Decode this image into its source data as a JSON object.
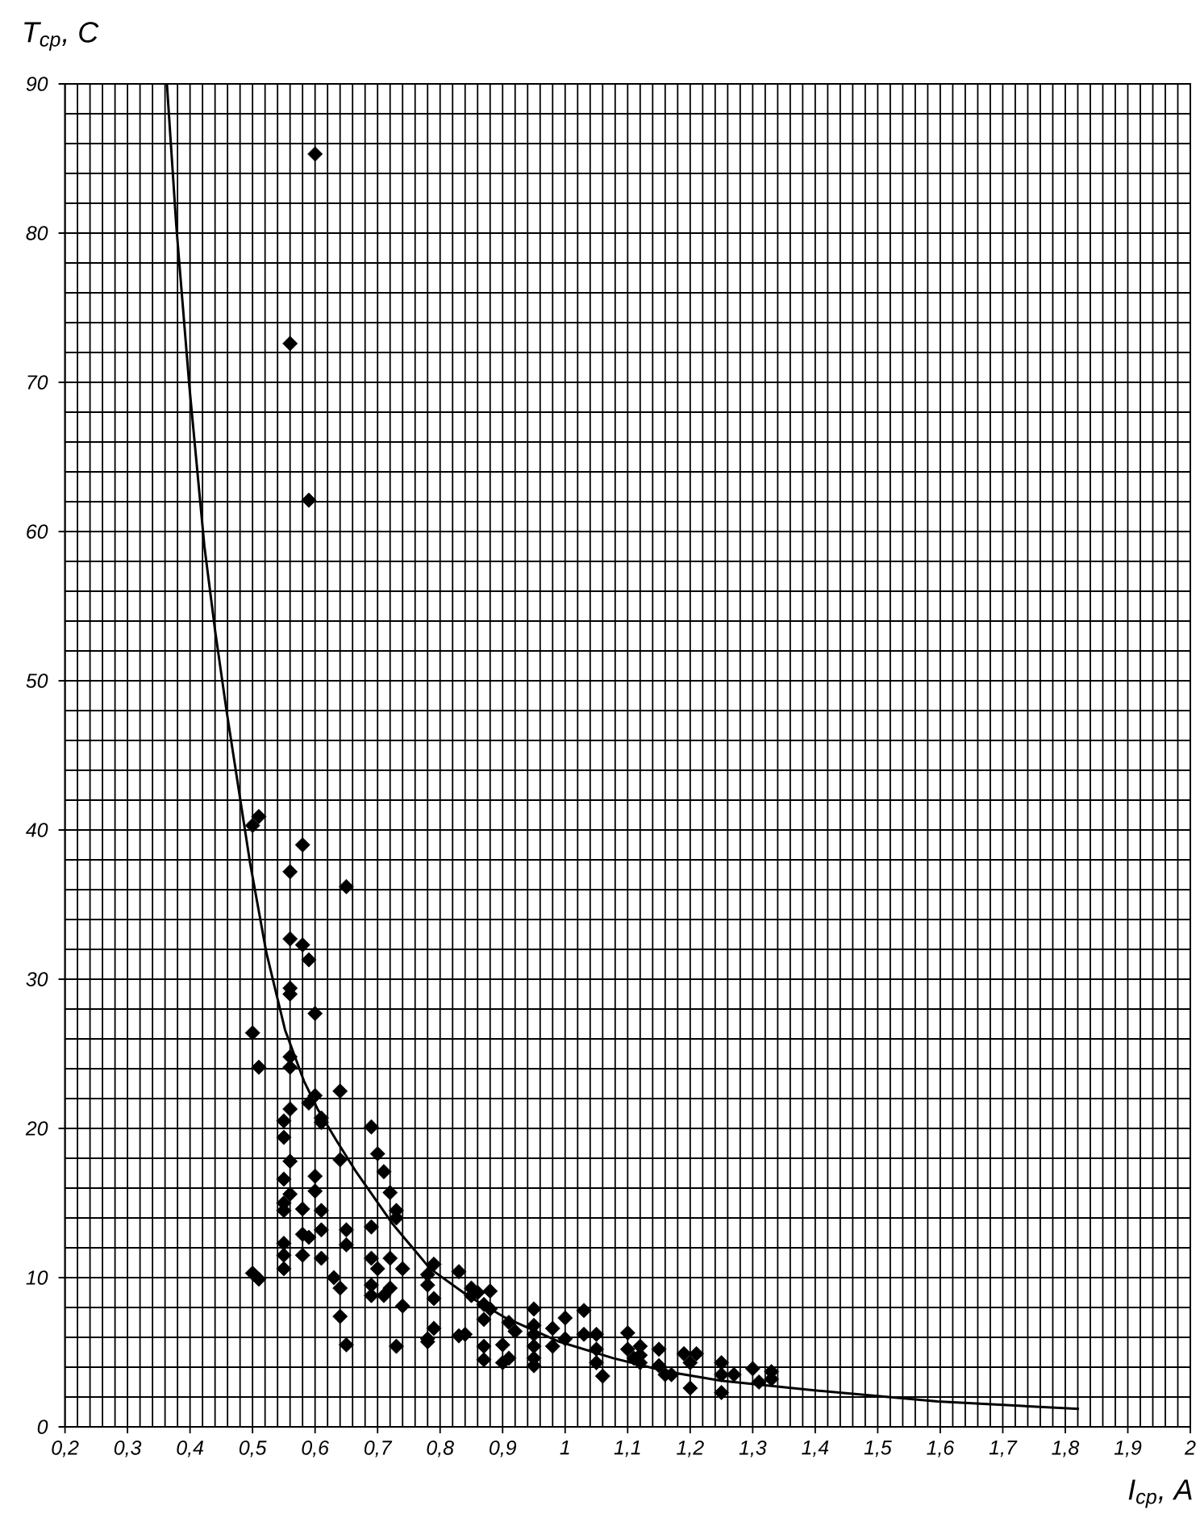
{
  "chart_data": {
    "type": "scatter",
    "xlabel": "I$_{ср}$, А",
    "ylabel": "T$_{ср}$, С",
    "xlim": [
      0.2,
      2
    ],
    "ylim": [
      0,
      90
    ],
    "xticks": [
      {
        "value": 0.2,
        "label": "0,2"
      },
      {
        "value": 0.3,
        "label": "0,3"
      },
      {
        "value": 0.4,
        "label": "0,4"
      },
      {
        "value": 0.5,
        "label": "0,5"
      },
      {
        "value": 0.6,
        "label": "0,6"
      },
      {
        "value": 0.7,
        "label": "0,7"
      },
      {
        "value": 0.8,
        "label": "0,8"
      },
      {
        "value": 0.9,
        "label": "0,9"
      },
      1,
      {
        "value": 1.1,
        "label": "1,1"
      },
      {
        "value": 1.2,
        "label": "1,2"
      },
      {
        "value": 1.3,
        "label": "1,3"
      },
      {
        "value": 1.4,
        "label": "1,4"
      },
      {
        "value": 1.5,
        "label": "1,5"
      },
      {
        "value": 1.6,
        "label": "1,6"
      },
      {
        "value": 1.7,
        "label": "1,7"
      },
      {
        "value": 1.8,
        "label": "1,8"
      },
      {
        "value": 1.9,
        "label": "1,9"
      },
      2
    ],
    "yticks": [
      0,
      10,
      20,
      30,
      40,
      50,
      60,
      70,
      80,
      90
    ],
    "grid": true,
    "series": [
      {
        "color": "#000000",
        "marker": "diamond",
        "x": [
          0.6,
          0.56,
          0.59,
          0.5,
          0.51,
          0.58,
          0.56,
          0.65,
          0.56,
          0.58,
          0.59,
          0.56,
          0.56,
          0.6,
          0.5,
          0.51,
          0.56,
          0.56,
          0.6,
          0.59,
          0.64,
          0.56,
          0.55,
          0.61,
          0.61,
          0.69,
          0.55,
          0.7,
          0.64,
          0.56,
          0.71,
          0.55,
          0.6,
          0.56,
          0.6,
          0.72,
          0.55,
          0.55,
          0.58,
          0.61,
          0.73,
          0.73,
          0.69,
          0.65,
          0.58,
          0.59,
          0.61,
          0.65,
          0.55,
          0.55,
          0.58,
          0.61,
          0.69,
          0.7,
          0.72,
          0.74,
          0.55,
          0.5,
          0.51,
          0.63,
          0.64,
          0.69,
          0.69,
          0.71,
          0.72,
          0.74,
          0.78,
          0.79,
          0.78,
          0.79,
          0.64,
          0.79,
          0.78,
          0.78,
          0.65,
          0.73,
          0.83,
          0.85,
          0.86,
          0.88,
          0.85,
          0.87,
          0.88,
          0.87,
          0.83,
          0.84,
          0.87,
          0.87,
          0.9,
          0.91,
          0.91,
          0.9,
          0.92,
          0.95,
          0.95,
          0.95,
          0.95,
          0.95,
          0.95,
          0.98,
          0.98,
          1.0,
          1.0,
          1.03,
          1.03,
          1.05,
          1.05,
          1.05,
          1.06,
          1.1,
          1.1,
          1.12,
          1.11,
          1.12,
          1.12,
          1.15,
          1.15,
          1.16,
          1.17,
          1.19,
          1.21,
          1.2,
          1.2,
          1.25,
          1.25,
          1.25,
          1.27,
          1.3,
          1.31,
          1.33,
          1.33
        ],
        "values": [
          85.3,
          72.6,
          62.1,
          40.3,
          40.9,
          39.0,
          37.2,
          36.2,
          32.7,
          32.3,
          31.3,
          29.4,
          29.0,
          27.7,
          26.4,
          24.1,
          24.8,
          24.1,
          22.2,
          21.7,
          22.5,
          21.3,
          20.5,
          20.7,
          20.4,
          20.1,
          19.4,
          18.3,
          17.9,
          17.8,
          17.1,
          16.6,
          16.8,
          15.6,
          15.8,
          15.7,
          14.5,
          15.0,
          14.6,
          14.5,
          14.5,
          14.0,
          13.4,
          13.2,
          12.9,
          12.7,
          13.2,
          12.2,
          12.3,
          11.5,
          11.5,
          11.3,
          11.3,
          10.6,
          11.3,
          10.6,
          10.6,
          10.3,
          9.9,
          10.0,
          9.3,
          9.5,
          8.8,
          8.8,
          9.3,
          8.1,
          10.2,
          10.9,
          9.5,
          8.6,
          7.4,
          6.6,
          5.9,
          5.7,
          5.5,
          5.4,
          10.4,
          9.3,
          9.0,
          9.1,
          8.8,
          8.2,
          7.9,
          7.2,
          6.1,
          6.2,
          5.4,
          4.5,
          4.3,
          4.6,
          7.0,
          5.5,
          6.4,
          7.9,
          6.8,
          6.2,
          5.4,
          4.6,
          4.1,
          6.6,
          5.4,
          7.3,
          5.9,
          7.8,
          6.2,
          6.2,
          5.2,
          4.3,
          3.4,
          6.3,
          5.2,
          5.4,
          4.6,
          4.8,
          4.3,
          5.2,
          4.1,
          3.5,
          3.5,
          4.9,
          4.9,
          4.3,
          2.6,
          4.3,
          3.5,
          2.3,
          3.5,
          3.9,
          3.0,
          3.7,
          3.2
        ]
      },
      {
        "type": "line",
        "color": "#000000",
        "marker": "none",
        "line_style": "solid",
        "x": [
          0.363,
          0.378,
          0.399,
          0.423,
          0.44,
          0.458,
          0.479,
          0.496,
          0.522,
          0.552,
          0.582,
          0.604,
          0.634,
          0.664,
          0.724,
          0.784,
          0.844,
          0.905,
          0.991,
          1.077,
          1.163,
          1.249,
          1.386,
          1.596,
          1.822
        ],
        "values": [
          90,
          80.5,
          69.7,
          59.0,
          53.4,
          48.1,
          42.4,
          37.8,
          31.8,
          26.6,
          23.2,
          21.3,
          19.2,
          17.2,
          13.6,
          10.6,
          8.8,
          7.3,
          5.7,
          4.6,
          3.7,
          3.1,
          2.5,
          1.7,
          1.2
        ]
      }
    ]
  }
}
